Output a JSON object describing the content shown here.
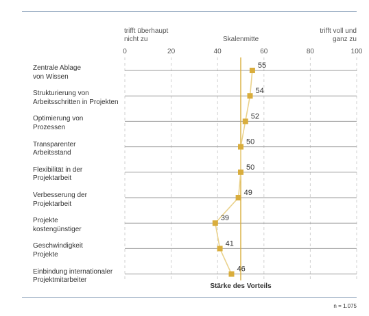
{
  "chart_data": {
    "type": "line",
    "header_left": [
      "trifft überhaupt",
      "nicht zu"
    ],
    "header_mid": "Skalenmitte",
    "header_right": [
      "trifft voll und",
      "ganz zu"
    ],
    "xlim": [
      0,
      100
    ],
    "xticks": [
      0,
      20,
      40,
      60,
      80,
      100
    ],
    "midline": 50,
    "categories": [
      [
        "Zentrale Ablage",
        "von Wissen"
      ],
      [
        "Strukturierung von",
        "Arbeitsschritten in Projekten"
      ],
      [
        "Optimierung von",
        "Prozessen"
      ],
      [
        "Transparenter",
        "Arbeitsstand"
      ],
      [
        "Flexibilität in der",
        "Projektarbeit"
      ],
      [
        "Verbesserung der",
        "Projektarbeit"
      ],
      [
        "Projekte",
        "kostengünstiger"
      ],
      [
        "Geschwindigkeit",
        "Projekte"
      ],
      [
        "Einbindung internationaler",
        "Projektmitarbeiter"
      ]
    ],
    "values": [
      55,
      54,
      52,
      50,
      50,
      49,
      39,
      41,
      46
    ],
    "xlabel": "Stärke des Vorteils",
    "footnote": "n = 1.075",
    "colors": {
      "series": "#d9ad3c",
      "line": "#ead28c",
      "midline": "#d9ad3c",
      "rowline": "#9a9a9a",
      "grid": "#cfcfcf",
      "rule": "#7f97b3"
    }
  }
}
